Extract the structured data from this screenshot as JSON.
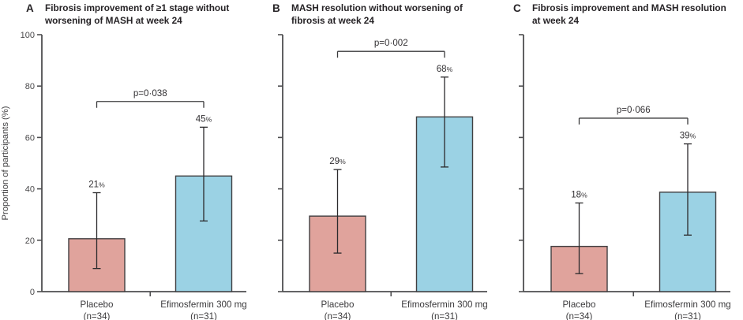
{
  "colors": {
    "placebo_fill": "#e0a39c",
    "treatment_fill": "#9bd2e4",
    "bar_stroke": "#403f41",
    "axis": "#4e4e50",
    "error_bar": "#2b2a2c",
    "text": "#3b3a3c",
    "title_text": "#262326"
  },
  "chart_data": [
    {
      "type": "bar",
      "panel": "A",
      "title": "Fibrosis improvement of ≥1 stage without worsening of MASH at week 24",
      "title_lines": [
        "Fibrosis improvement of ≥1 stage without",
        "worsening of MASH at week 24"
      ],
      "ylabel": "Proportion of participants (%)",
      "ylim": [
        0,
        100
      ],
      "yticks": [
        0,
        20,
        40,
        60,
        80,
        100
      ],
      "p_value": "p=0·038",
      "groups": [
        {
          "key": "placebo",
          "label": "Placebo",
          "n_label": "(n=34)",
          "value": 20.6,
          "value_label": "21%",
          "ci": [
            9,
            38.5
          ]
        },
        {
          "key": "efimosfermin",
          "label": "Efimosfermin 300 mg",
          "n_label": "(n=31)",
          "value": 45,
          "value_label": "45%",
          "ci": [
            27.5,
            64
          ]
        }
      ]
    },
    {
      "type": "bar",
      "panel": "B",
      "title": "MASH resolution without worsening of fibrosis at week 24",
      "title_lines": [
        "MASH resolution without worsening of",
        "fibrosis at week 24"
      ],
      "ylim": [
        0,
        100
      ],
      "yticks": [
        0,
        20,
        40,
        60,
        80,
        100
      ],
      "p_value": "p=0·002",
      "groups": [
        {
          "key": "placebo",
          "label": "Placebo",
          "n_label": "(n=34)",
          "value": 29.4,
          "value_label": "29%",
          "ci": [
            15,
            47.5
          ]
        },
        {
          "key": "efimosfermin",
          "label": "Efimosfermin 300 mg",
          "n_label": "(n=31)",
          "value": 68,
          "value_label": "68%",
          "ci": [
            48.5,
            83.5
          ]
        }
      ]
    },
    {
      "type": "bar",
      "panel": "C",
      "title": "Fibrosis improvement and MASH resolution at week 24",
      "title_lines": [
        "Fibrosis improvement and MASH resolution",
        "at week 24"
      ],
      "ylim": [
        0,
        100
      ],
      "yticks": [
        0,
        20,
        40,
        60,
        80,
        100
      ],
      "p_value": "p=0·066",
      "groups": [
        {
          "key": "placebo",
          "label": "Placebo",
          "n_label": "(n=34)",
          "value": 17.6,
          "value_label": "18%",
          "ci": [
            7,
            34.5
          ]
        },
        {
          "key": "efimosfermin",
          "label": "Efimosfermin 300 mg",
          "n_label": "(n=31)",
          "value": 38.7,
          "value_label": "39%",
          "ci": [
            22,
            57.5
          ]
        }
      ]
    }
  ]
}
